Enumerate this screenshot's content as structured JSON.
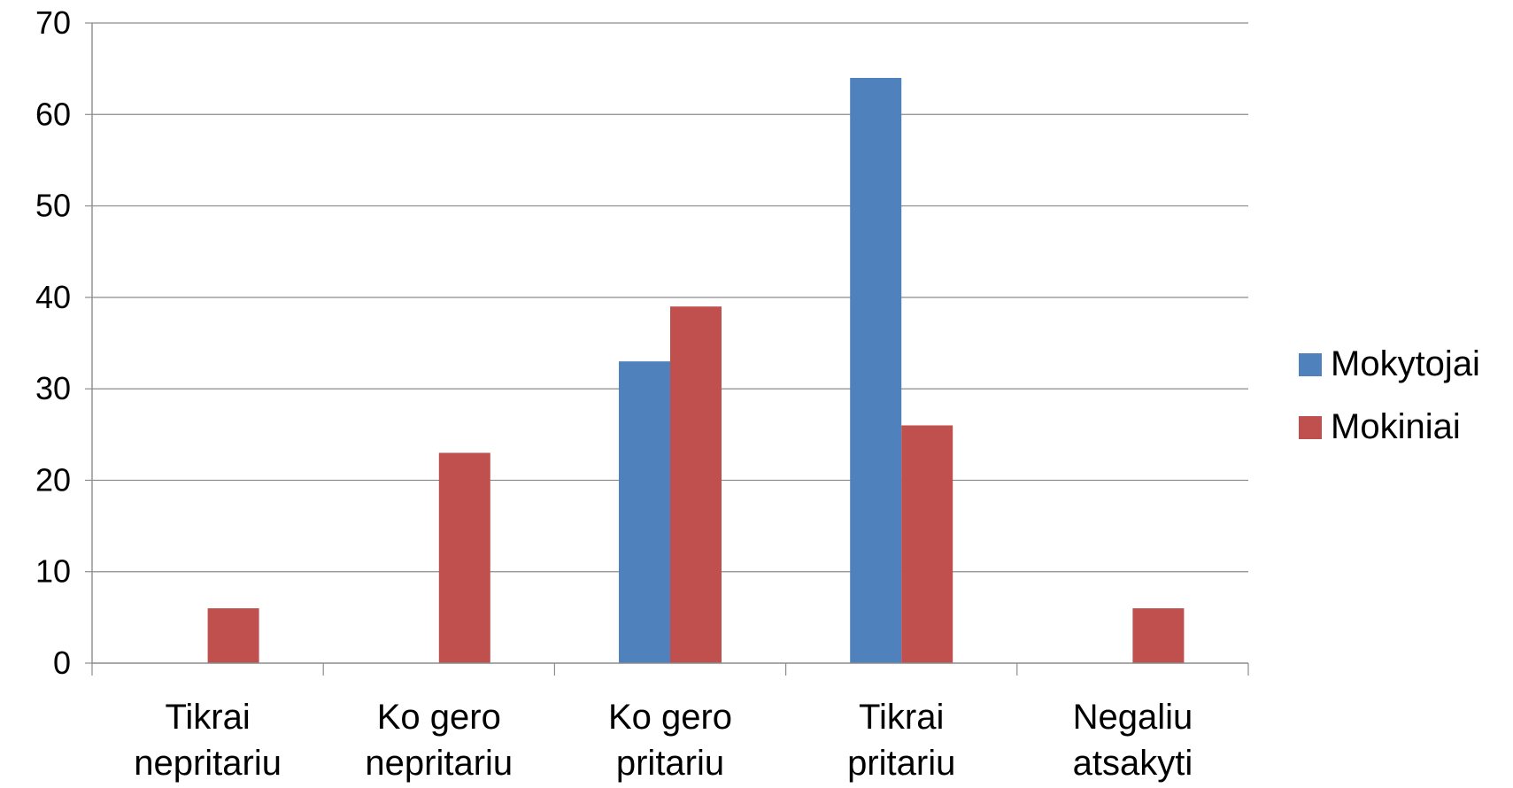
{
  "chart_data": {
    "type": "bar",
    "title": "",
    "xlabel": "",
    "ylabel": "",
    "categories": [
      [
        "Tikrai",
        "nepritariu"
      ],
      [
        "Ko gero",
        "nepritariu"
      ],
      [
        "Ko gero",
        "pritariu"
      ],
      [
        "Tikrai",
        "pritariu"
      ],
      [
        "Negaliu",
        "atsakyti"
      ]
    ],
    "series": [
      {
        "name": "Mokytojai",
        "color": "#4F81BD",
        "values": [
          0,
          0,
          33,
          64,
          0
        ]
      },
      {
        "name": "Mokiniai",
        "color": "#C0504D",
        "values": [
          6,
          23,
          39,
          26,
          6
        ]
      }
    ],
    "ylim": [
      0,
      70
    ],
    "yticks": [
      0,
      10,
      20,
      30,
      40,
      50,
      60,
      70
    ],
    "grid": true,
    "legend": "right"
  }
}
